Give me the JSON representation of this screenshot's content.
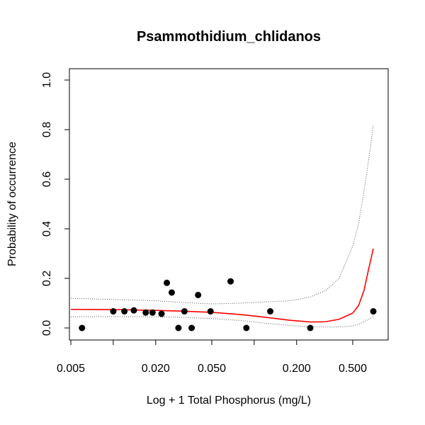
{
  "chart_data": {
    "type": "scatter",
    "title": "Psammothidium_chlidanos",
    "xlabel": "Log + 1 Total Phosphorus (mg/L)",
    "ylabel": "Probability of occurrence",
    "x_scale": "log",
    "xlim": [
      0.005,
      0.75
    ],
    "ylim": [
      0,
      1
    ],
    "x_ticks": [
      {
        "value": 0.005,
        "label": "0.005"
      },
      {
        "value": 0.02,
        "label": "0.020"
      },
      {
        "value": 0.05,
        "label": "0.050"
      },
      {
        "value": 0.2,
        "label": "0.200"
      },
      {
        "value": 0.5,
        "label": "0.500"
      }
    ],
    "x_minor_ticks": [
      0.01,
      0.1,
      1.0
    ],
    "y_ticks": [
      {
        "value": 0,
        "label": "0.0"
      },
      {
        "value": 0.2,
        "label": "0.2"
      },
      {
        "value": 0.4,
        "label": "0.4"
      },
      {
        "value": 0.6,
        "label": "0.6"
      },
      {
        "value": 0.8,
        "label": "0.8"
      },
      {
        "value": 1.0,
        "label": "1.0"
      }
    ],
    "points": [
      {
        "x": 0.006,
        "y": 0.0
      },
      {
        "x": 0.01,
        "y": 0.067
      },
      {
        "x": 0.012,
        "y": 0.067
      },
      {
        "x": 0.014,
        "y": 0.071
      },
      {
        "x": 0.017,
        "y": 0.062
      },
      {
        "x": 0.019,
        "y": 0.062
      },
      {
        "x": 0.022,
        "y": 0.057
      },
      {
        "x": 0.024,
        "y": 0.182
      },
      {
        "x": 0.026,
        "y": 0.143
      },
      {
        "x": 0.029,
        "y": 0.0
      },
      {
        "x": 0.032,
        "y": 0.067
      },
      {
        "x": 0.036,
        "y": 0.0
      },
      {
        "x": 0.04,
        "y": 0.133
      },
      {
        "x": 0.049,
        "y": 0.067
      },
      {
        "x": 0.068,
        "y": 0.188
      },
      {
        "x": 0.088,
        "y": 0.0
      },
      {
        "x": 0.13,
        "y": 0.067
      },
      {
        "x": 0.25,
        "y": 0.0
      },
      {
        "x": 0.7,
        "y": 0.067
      }
    ],
    "fit": {
      "color": "#ff0000",
      "x": [
        0.005,
        0.01,
        0.02,
        0.03,
        0.05,
        0.08,
        0.12,
        0.18,
        0.25,
        0.32,
        0.4,
        0.5,
        0.55,
        0.6,
        0.65,
        0.7
      ],
      "y": [
        0.075,
        0.074,
        0.071,
        0.068,
        0.063,
        0.054,
        0.043,
        0.031,
        0.024,
        0.025,
        0.035,
        0.06,
        0.09,
        0.15,
        0.24,
        0.32
      ]
    },
    "ci_upper": {
      "x": [
        0.005,
        0.01,
        0.02,
        0.03,
        0.05,
        0.08,
        0.12,
        0.18,
        0.25,
        0.32,
        0.4,
        0.5,
        0.55,
        0.6,
        0.65,
        0.7
      ],
      "y": [
        0.12,
        0.115,
        0.11,
        0.103,
        0.097,
        0.1,
        0.105,
        0.11,
        0.125,
        0.15,
        0.2,
        0.33,
        0.42,
        0.55,
        0.68,
        0.82
      ]
    },
    "ci_lower": {
      "x": [
        0.005,
        0.01,
        0.02,
        0.03,
        0.05,
        0.08,
        0.12,
        0.18,
        0.25,
        0.32,
        0.4,
        0.5,
        0.55,
        0.6,
        0.65,
        0.7
      ],
      "y": [
        0.045,
        0.046,
        0.045,
        0.043,
        0.038,
        0.03,
        0.019,
        0.01,
        0.005,
        0.004,
        0.004,
        0.008,
        0.015,
        0.025,
        0.035,
        0.045
      ]
    }
  }
}
